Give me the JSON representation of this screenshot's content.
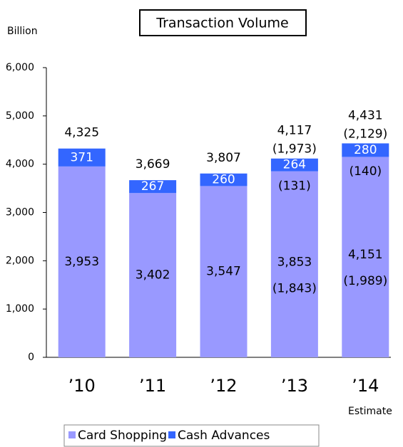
{
  "chart_data": {
    "type": "stacked_bar",
    "title": "Transaction Volume",
    "y_axis_label": "Billion",
    "annotation": "Estimate",
    "categories": [
      "’10",
      "’11",
      "’12",
      "’13",
      "’14"
    ],
    "series": [
      {
        "name": "Card Shopping",
        "color": "#9999ff",
        "values": [
          3953,
          3402,
          3547,
          3853,
          4151
        ],
        "value_labels": [
          "3,953",
          "3,402",
          "3,547",
          "3,853",
          "4,151"
        ],
        "sub_labels": [
          null,
          null,
          null,
          "(1,843)",
          "(1,989)"
        ]
      },
      {
        "name": "Cash Advances",
        "color": "#3366ff",
        "values": [
          371,
          267,
          260,
          264,
          280
        ],
        "sub_labels": [
          null,
          null,
          null,
          "(131)",
          "(140)"
        ]
      }
    ],
    "totals": [
      4325,
      3669,
      3807,
      4117,
      4431
    ],
    "total_labels": [
      "4,325",
      "3,669",
      "3,807",
      "4,117",
      "4,431"
    ],
    "total_sub_labels": [
      null,
      null,
      null,
      "(1,973)",
      "(2,129)"
    ],
    "ylim": [
      0,
      6000
    ],
    "yticks": [
      0,
      {
        "value": 1000,
        "label": "1,000"
      },
      {
        "value": 2000,
        "label": "2,000"
      },
      {
        "value": 3000,
        "label": "3,000"
      },
      {
        "value": 4000,
        "label": "4,000"
      },
      {
        "value": 5000,
        "label": "5,000"
      },
      {
        "value": 6000,
        "label": "6,000"
      }
    ],
    "legend": "bottom"
  }
}
